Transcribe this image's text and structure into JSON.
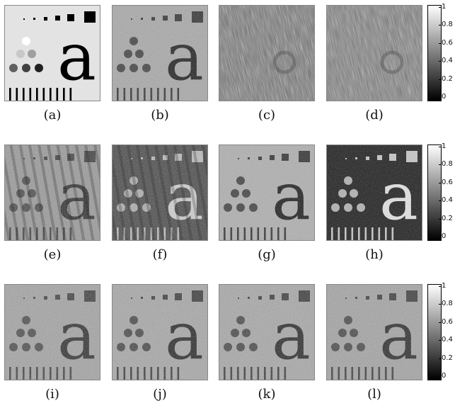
{
  "panels": [
    {
      "id": "a",
      "label": "(a)",
      "kind": "clean"
    },
    {
      "id": "b",
      "label": "(b)",
      "kind": "recon",
      "bg": "#a9a9a9",
      "fg": "#202020",
      "noise": 0.9,
      "stripes": false
    },
    {
      "id": "c",
      "label": "(c)",
      "kind": "streak",
      "bg": "#707070"
    },
    {
      "id": "d",
      "label": "(d)",
      "kind": "streak",
      "bg": "#787878"
    },
    {
      "id": "e",
      "label": "(e)",
      "kind": "recon",
      "bg": "#9a9a9a",
      "fg": "#303030",
      "noise": 1.0,
      "stripes": true
    },
    {
      "id": "f",
      "label": "(f)",
      "kind": "recon",
      "bg": "#4a4a4a",
      "fg": "#d0d0d0",
      "noise": 1.0,
      "stripes": true
    },
    {
      "id": "g",
      "label": "(g)",
      "kind": "recon",
      "bg": "#b0b0b0",
      "fg": "#202020",
      "noise": 0.8,
      "stripes": false
    },
    {
      "id": "h",
      "label": "(h)",
      "kind": "recon",
      "bg": "#1e1e1e",
      "fg": "#e4e4e4",
      "noise": 0.8,
      "stripes": false
    },
    {
      "id": "i",
      "label": "(i)",
      "kind": "recon",
      "bg": "#a4a4a4",
      "fg": "#303030",
      "noise": 1.0,
      "stripes": false
    },
    {
      "id": "j",
      "label": "(j)",
      "kind": "recon",
      "bg": "#a8a8a8",
      "fg": "#282828",
      "noise": 1.0,
      "stripes": false
    },
    {
      "id": "k",
      "label": "(k)",
      "kind": "recon",
      "bg": "#a8a8a8",
      "fg": "#282828",
      "noise": 1.0,
      "stripes": false
    },
    {
      "id": "l",
      "label": "(l)",
      "kind": "recon",
      "bg": "#a4a4a4",
      "fg": "#2a2a2a",
      "noise": 1.0,
      "stripes": false
    }
  ],
  "colorbar_ticks": [
    "1",
    "0.8",
    "0.6",
    "0.4",
    "0.2",
    "0"
  ]
}
